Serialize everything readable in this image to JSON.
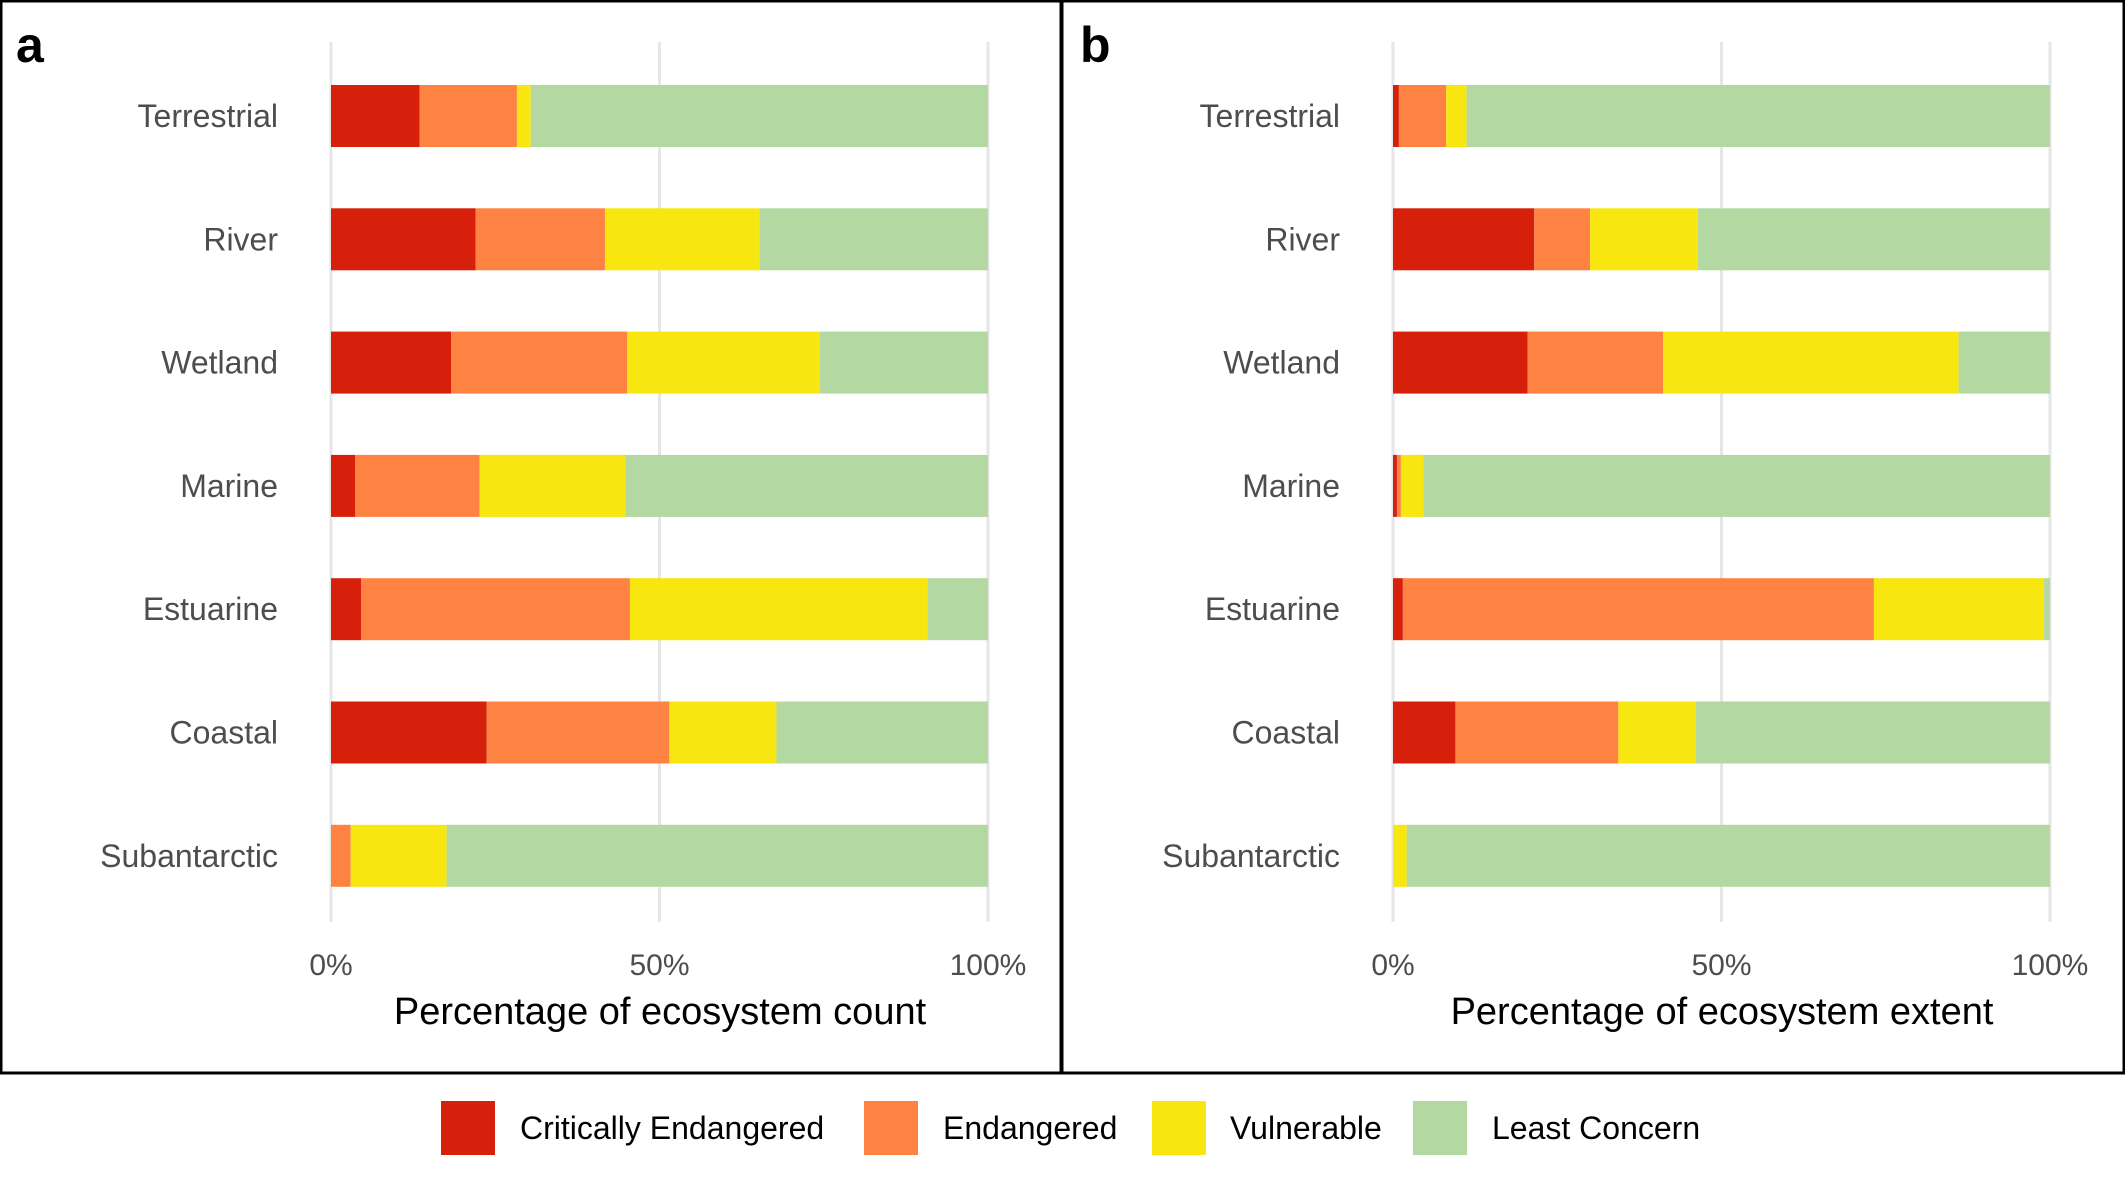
{
  "legend": {
    "entries": [
      {
        "label": "Critically Endangered",
        "color": "#d7200c"
      },
      {
        "label": "Endangered",
        "color": "#fe8342"
      },
      {
        "label": "Vulnerable",
        "color": "#f7e610"
      },
      {
        "label": "Least Concern",
        "color": "#b4d8a1"
      }
    ]
  },
  "chart_data": [
    {
      "panel": "a",
      "type": "bar",
      "orientation": "horizontal",
      "stacked": true,
      "xlabel": "Percentage of ecosystem count",
      "ylabel": "",
      "xlim": [
        0,
        100
      ],
      "x_ticks": [
        "0%",
        "50%",
        "100%"
      ],
      "grid": true,
      "categories": [
        "Terrestrial",
        "River",
        "Wetland",
        "Marine",
        "Estuarine",
        "Coastal",
        "Subantarctic"
      ],
      "series": [
        {
          "name": "Critically Endangered",
          "values": [
            13.5,
            22,
            18.3,
            3.7,
            4.6,
            23.7,
            0
          ]
        },
        {
          "name": "Endangered",
          "values": [
            14.8,
            19.7,
            26.8,
            18.9,
            40.9,
            27.8,
            3
          ]
        },
        {
          "name": "Vulnerable",
          "values": [
            2.1,
            23.5,
            29.3,
            22.2,
            45.3,
            16.3,
            14.6
          ]
        },
        {
          "name": "Least Concern",
          "values": [
            69.6,
            34.8,
            25.6,
            55.2,
            9.2,
            32.2,
            82.4
          ]
        }
      ]
    },
    {
      "panel": "b",
      "type": "bar",
      "orientation": "horizontal",
      "stacked": true,
      "xlabel": "Percentage of ecosystem extent",
      "ylabel": "",
      "xlim": [
        0,
        100
      ],
      "x_ticks": [
        "0%",
        "50%",
        "100%"
      ],
      "grid": true,
      "categories": [
        "Terrestrial",
        "River",
        "Wetland",
        "Marine",
        "Estuarine",
        "Coastal",
        "Subantarctic"
      ],
      "series": [
        {
          "name": "Critically Endangered",
          "values": [
            0.9,
            21.5,
            20.5,
            0.6,
            1.5,
            9.5,
            0
          ]
        },
        {
          "name": "Endangered",
          "values": [
            7.2,
            8.5,
            20.6,
            0.6,
            71.7,
            24.8,
            0
          ]
        },
        {
          "name": "Vulnerable",
          "values": [
            3.1,
            16.4,
            45,
            3.4,
            25.9,
            11.8,
            2.1
          ]
        },
        {
          "name": "Least Concern",
          "values": [
            88.8,
            53.6,
            13.9,
            95.4,
            0.9,
            53.9,
            97.9
          ]
        }
      ]
    }
  ]
}
